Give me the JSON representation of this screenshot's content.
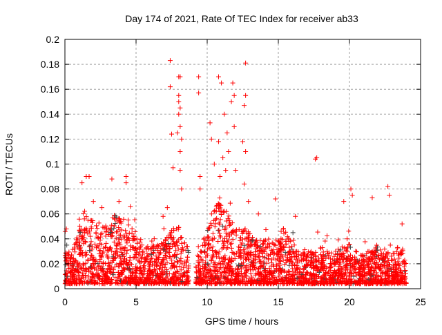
{
  "chart_data": {
    "type": "scatter",
    "title": "Day 174 of 2021, Rate Of TEC Index for receiver ab33",
    "xlabel": "GPS time / hours",
    "ylabel": "ROTI / TECUs",
    "xlim": [
      0,
      25
    ],
    "ylim": [
      0,
      0.2
    ],
    "xticks": [
      "0",
      "5",
      "10",
      "15",
      "20",
      "25"
    ],
    "yticks": [
      "0",
      "0.02",
      "0.04",
      "0.06",
      "0.08",
      "0.1",
      "0.12",
      "0.14",
      "0.16",
      "0.18",
      "0.2"
    ],
    "grid": true,
    "marker": "plus",
    "color": "#ff0000",
    "dense_band": {
      "hours": [
        0,
        0.5,
        1,
        1.5,
        2,
        2.5,
        3,
        3.5,
        4,
        4.5,
        5,
        5.5,
        6,
        6.5,
        7,
        7.5,
        8,
        8.5,
        9,
        9.5,
        10,
        10.5,
        11,
        11.5,
        12,
        12.5,
        13,
        13.5,
        14,
        14.5,
        15,
        15.5,
        16,
        16.5,
        17,
        17.5,
        18,
        18.5,
        19,
        19.5,
        20,
        20.5,
        21,
        21.5,
        22,
        22.5,
        23,
        23.5,
        24
      ],
      "upper_roti": [
        0.03,
        0.03,
        0.05,
        0.06,
        0.055,
        0.05,
        0.055,
        0.06,
        0.06,
        0.055,
        0.04,
        0.04,
        0.035,
        0.035,
        0.04,
        0.05,
        0.05,
        0.035,
        0,
        0.03,
        0.05,
        0.07,
        0.07,
        0.06,
        0.05,
        0.05,
        0.045,
        0.04,
        0.04,
        0.04,
        0.045,
        0.05,
        0.04,
        0.03,
        0.03,
        0.03,
        0.035,
        0.03,
        0.03,
        0.035,
        0.035,
        0.03,
        0.03,
        0.03,
        0.035,
        0.03,
        0.03,
        0.035,
        0.03
      ],
      "lower_roti": 0.004
    },
    "outliers": [
      [
        7.4,
        0.183
      ],
      [
        7.4,
        0.162
      ],
      [
        7.5,
        0.124
      ],
      [
        8.0,
        0.17
      ],
      [
        8.1,
        0.17
      ],
      [
        8.0,
        0.155
      ],
      [
        8.1,
        0.145
      ],
      [
        8.0,
        0.14
      ],
      [
        8.2,
        0.12
      ],
      [
        8.1,
        0.11
      ],
      [
        7.6,
        0.097
      ],
      [
        8.1,
        0.095
      ],
      [
        9.4,
        0.17
      ],
      [
        9.4,
        0.157
      ],
      [
        10.8,
        0.17
      ],
      [
        11.0,
        0.165
      ],
      [
        11.8,
        0.165
      ],
      [
        11.7,
        0.15
      ],
      [
        11.9,
        0.155
      ],
      [
        12.7,
        0.181
      ],
      [
        12.7,
        0.155
      ],
      [
        12.6,
        0.147
      ],
      [
        11.2,
        0.14
      ],
      [
        10.8,
        0.118
      ],
      [
        11.4,
        0.125
      ],
      [
        11.9,
        0.13
      ],
      [
        12.5,
        0.118
      ],
      [
        12.7,
        0.11
      ],
      [
        17.7,
        0.105
      ],
      [
        17.6,
        0.104
      ],
      [
        22.7,
        0.082
      ],
      [
        22.8,
        0.075
      ],
      [
        20.1,
        0.08
      ],
      [
        20.2,
        0.075
      ],
      [
        19.6,
        0.07
      ],
      [
        1.5,
        0.09
      ],
      [
        1.7,
        0.09
      ],
      [
        1.2,
        0.085
      ],
      [
        3.3,
        0.088
      ],
      [
        4.3,
        0.09
      ],
      [
        4.3,
        0.085
      ],
      [
        10.2,
        0.133
      ],
      [
        9.5,
        0.09
      ],
      [
        12.6,
        0.084
      ],
      [
        21.6,
        0.073
      ],
      [
        16.2,
        0.058
      ],
      [
        14.8,
        0.072
      ],
      [
        23.7,
        0.052
      ],
      [
        0.1,
        0.048
      ],
      [
        6.9,
        0.058
      ],
      [
        7.2,
        0.065
      ],
      [
        10.5,
        0.1
      ],
      [
        11.1,
        0.105
      ],
      [
        10.9,
        0.09
      ],
      [
        11.3,
        0.095
      ],
      [
        8.1,
        0.13
      ],
      [
        8.0,
        0.15
      ],
      [
        7.9,
        0.125
      ],
      [
        8.2,
        0.08
      ],
      [
        9.5,
        0.08
      ],
      [
        10.3,
        0.12
      ],
      [
        11.5,
        0.11
      ],
      [
        12.0,
        0.095
      ],
      [
        12.9,
        0.07
      ],
      [
        13.6,
        0.06
      ],
      [
        2.0,
        0.07
      ],
      [
        2.6,
        0.065
      ],
      [
        3.8,
        0.07
      ],
      [
        4.6,
        0.066
      ]
    ]
  }
}
